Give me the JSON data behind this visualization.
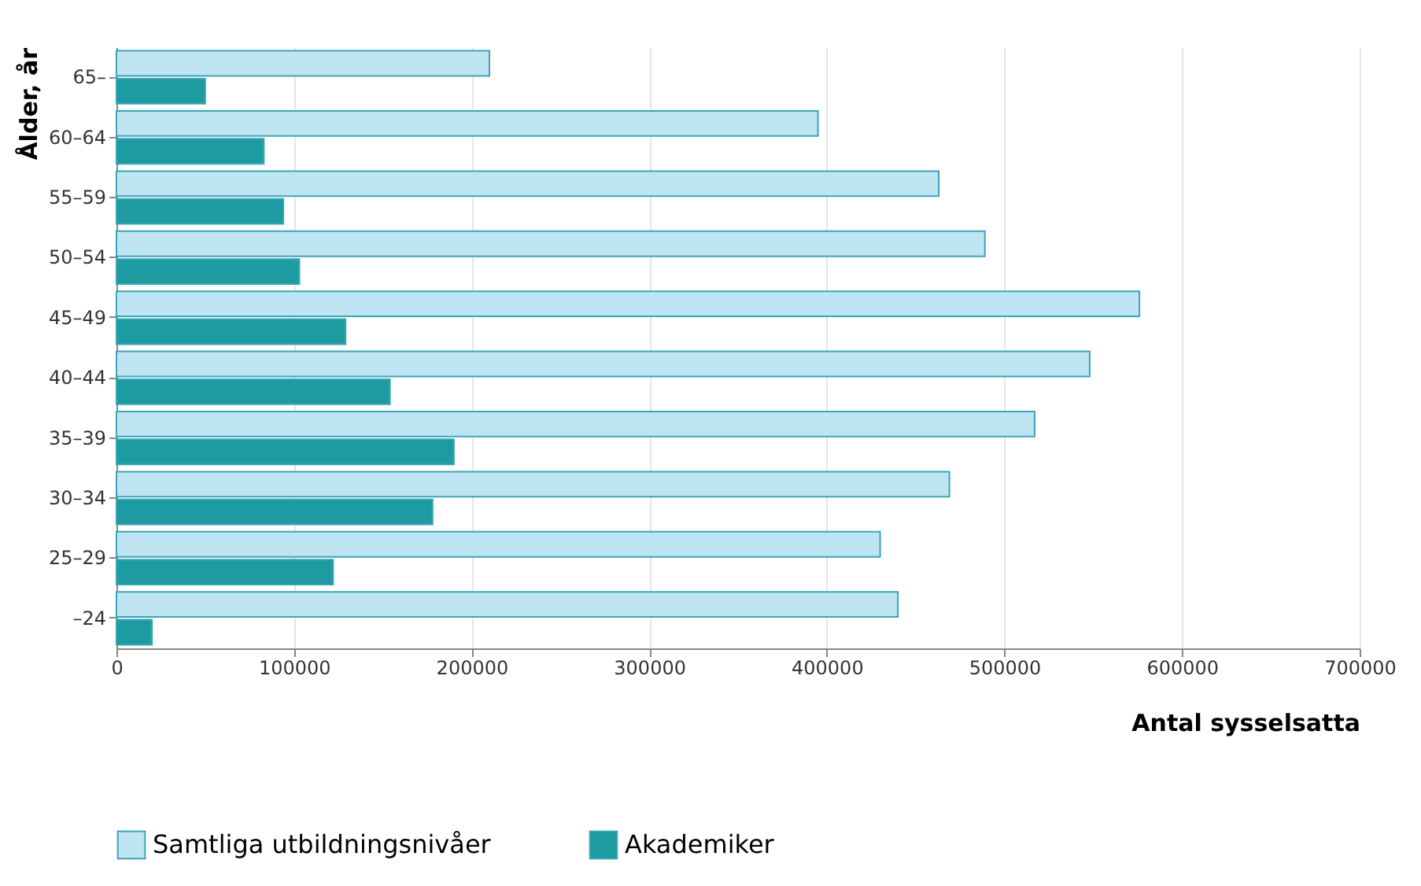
{
  "chart_data": {
    "type": "bar",
    "orientation": "horizontal",
    "xlabel": "Antal sysselsatta",
    "ylabel": "Ålder, år",
    "categories": [
      "65–",
      "60–64",
      "55–59",
      "50–54",
      "45–49",
      "40–44",
      "35–39",
      "30–34",
      "25–29",
      "–24"
    ],
    "series": [
      {
        "name": "Samtliga utbildningsnivåer",
        "color": "#bfe4f2",
        "values": [
          210000,
          395000,
          463000,
          489000,
          576000,
          548000,
          517000,
          469000,
          430000,
          440000
        ]
      },
      {
        "name": "Akademiker",
        "color": "#1e9ba1",
        "values": [
          50000,
          83000,
          94000,
          103000,
          129000,
          154000,
          190000,
          178000,
          122000,
          20000
        ]
      }
    ],
    "xlim": [
      0,
      700000
    ],
    "xticks": [
      0,
      100000,
      200000,
      300000,
      400000,
      500000,
      600000,
      700000
    ],
    "grid": "x",
    "legend": "bottom"
  }
}
